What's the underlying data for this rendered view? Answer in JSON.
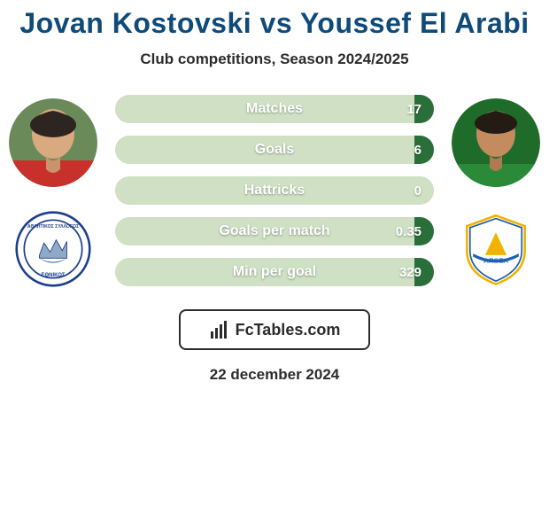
{
  "title_color": "#0f4a79",
  "title_shadow": "#ffffff",
  "subtitle_color": "#2c2c2c",
  "background_color": "#ffffff",
  "bar_bg_color": "#cfe0c4",
  "bar_fill_left_color": "#2a6f3a",
  "bar_fill_right_color": "#2a6f3a",
  "bar_label_color": "#ffffff",
  "bar_value_color": "#ffffff",
  "badge_box_border": "#2c2c2c",
  "badge_box_text": "#2c2c2c",
  "date_color": "#2c2c2c",
  "header": {
    "title": "Jovan Kostovski vs Youssef El Arabi",
    "subtitle": "Club competitions, Season 2024/2025"
  },
  "footer": {
    "brand": "FcTables.com",
    "date": "22 december 2024"
  },
  "bars": [
    {
      "label": "Matches",
      "left": "",
      "right": "17",
      "left_pct": 0,
      "right_pct": 6
    },
    {
      "label": "Goals",
      "left": "",
      "right": "6",
      "left_pct": 0,
      "right_pct": 6
    },
    {
      "label": "Hattricks",
      "left": "",
      "right": "0",
      "left_pct": 0,
      "right_pct": 0
    },
    {
      "label": "Goals per match",
      "left": "",
      "right": "0.35",
      "left_pct": 0,
      "right_pct": 6
    },
    {
      "label": "Min per goal",
      "left": "",
      "right": "329",
      "left_pct": 0,
      "right_pct": 6
    }
  ]
}
